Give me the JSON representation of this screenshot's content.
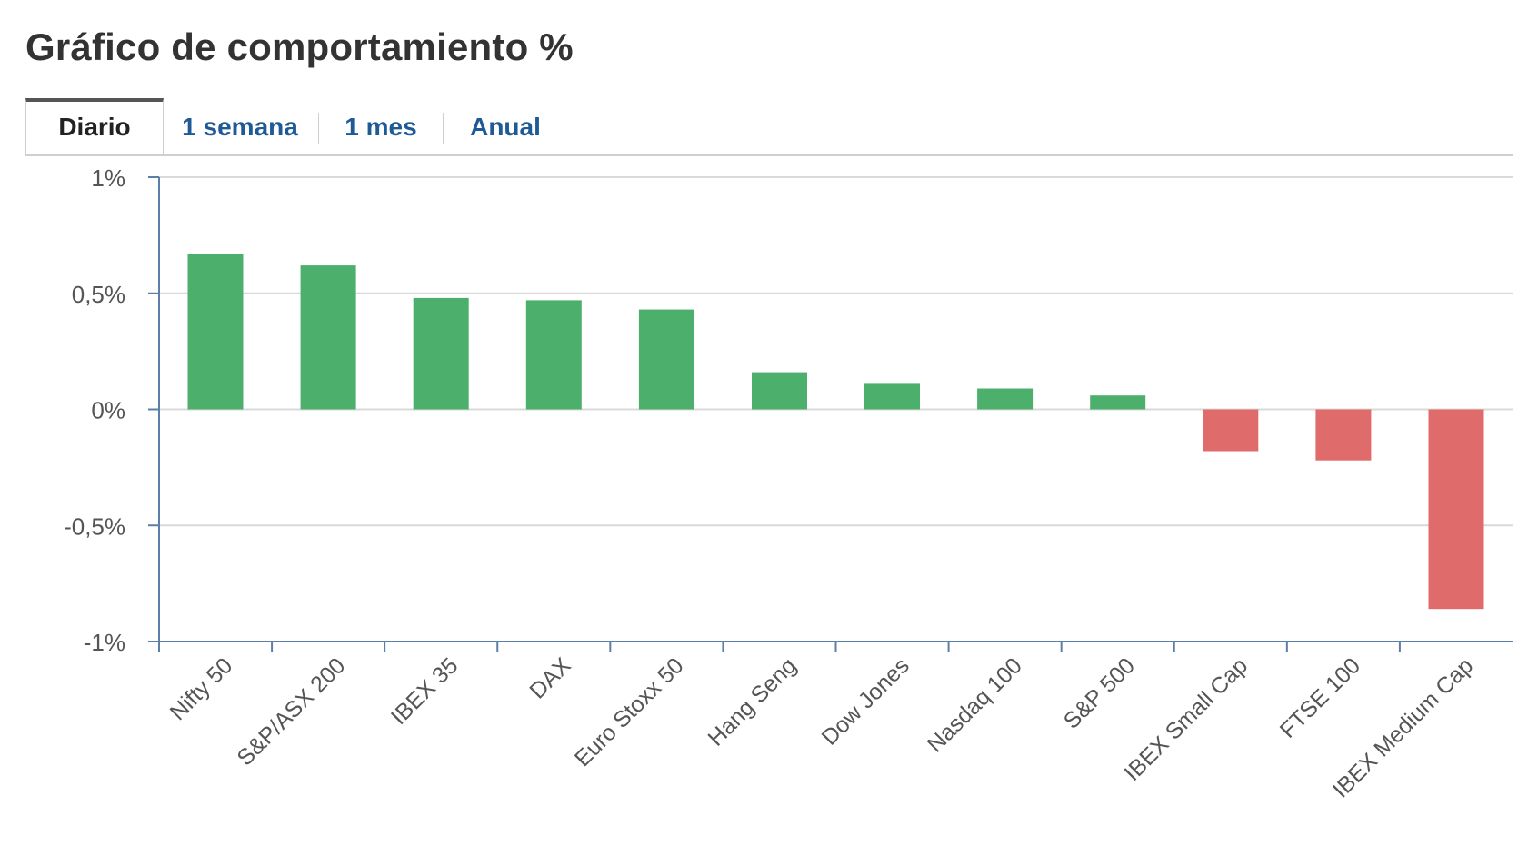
{
  "title": "Gráfico de comportamiento %",
  "tabs": [
    {
      "label": "Diario",
      "active": true
    },
    {
      "label": "1 semana",
      "active": false
    },
    {
      "label": "1 mes",
      "active": false
    },
    {
      "label": "Anual",
      "active": false
    }
  ],
  "colors": {
    "positive": "#4caf6c",
    "negative": "#e06b6b",
    "axis": "#5b7fa8",
    "grid": "#d9d9d9",
    "tick_text": "#555555",
    "tab_text": "#1e5a96"
  },
  "chart_data": {
    "type": "bar",
    "categories": [
      "Nifty 50",
      "S&P/ASX 200",
      "IBEX 35",
      "DAX",
      "Euro Stoxx 50",
      "Hang Seng",
      "Dow Jones",
      "Nasdaq 100",
      "S&P 500",
      "IBEX Small Cap",
      "FTSE 100",
      "IBEX Medium Cap"
    ],
    "values": [
      0.67,
      0.62,
      0.48,
      0.47,
      0.43,
      0.16,
      0.11,
      0.09,
      0.06,
      -0.18,
      -0.22,
      -0.86
    ],
    "ylim": [
      -1,
      1
    ],
    "yticks": [
      1,
      0.5,
      0,
      -0.5,
      -1
    ],
    "ytick_labels": [
      "1%",
      "0,5%",
      "0%",
      "-0,5%",
      "-1%"
    ],
    "grid": true,
    "xlabel": "",
    "ylabel": ""
  }
}
